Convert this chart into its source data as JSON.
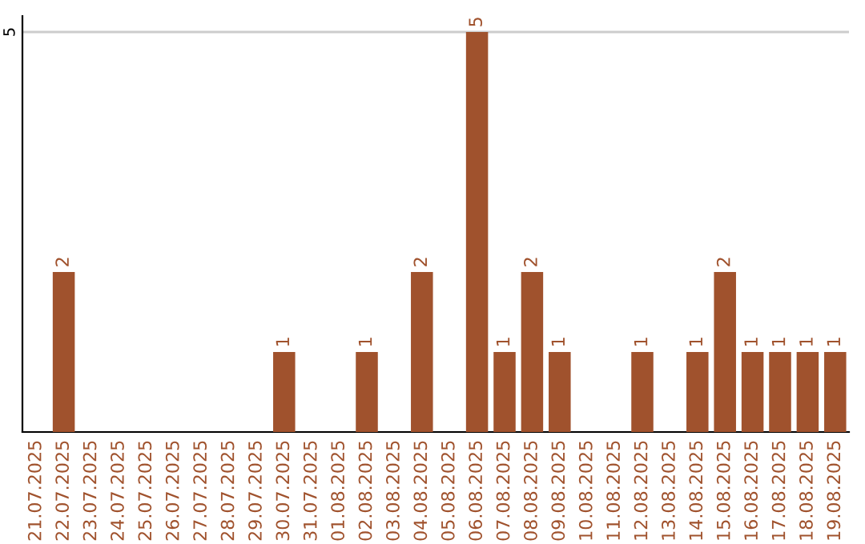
{
  "chart_data": {
    "type": "bar",
    "categories": [
      "21.07.2025",
      "22.07.2025",
      "23.07.2025",
      "24.07.2025",
      "25.07.2025",
      "26.07.2025",
      "27.07.2025",
      "28.07.2025",
      "29.07.2025",
      "30.07.2025",
      "31.07.2025",
      "01.08.2025",
      "02.08.2025",
      "03.08.2025",
      "04.08.2025",
      "05.08.2025",
      "06.08.2025",
      "07.08.2025",
      "08.08.2025",
      "09.08.2025",
      "10.08.2025",
      "11.08.2025",
      "12.08.2025",
      "13.08.2025",
      "14.08.2025",
      "15.08.2025",
      "16.08.2025",
      "17.08.2025",
      "18.08.2025",
      "19.08.2025"
    ],
    "values": [
      0,
      2,
      0,
      0,
      0,
      0,
      0,
      0,
      0,
      1,
      0,
      0,
      1,
      0,
      2,
      0,
      5,
      1,
      2,
      1,
      0,
      0,
      1,
      0,
      1,
      2,
      1,
      1,
      1,
      1
    ],
    "value_labels": [
      null,
      "2",
      null,
      null,
      null,
      null,
      null,
      null,
      null,
      "1",
      null,
      null,
      "1",
      null,
      "2",
      null,
      "5",
      "1",
      "2",
      "1",
      null,
      null,
      "1",
      null,
      "1",
      "2",
      "1",
      "1",
      "1",
      "1"
    ],
    "color": "#a0522d",
    "ylim": [
      0,
      5.2
    ],
    "yticks": [
      5
    ],
    "grid": "y",
    "legend": false
  }
}
